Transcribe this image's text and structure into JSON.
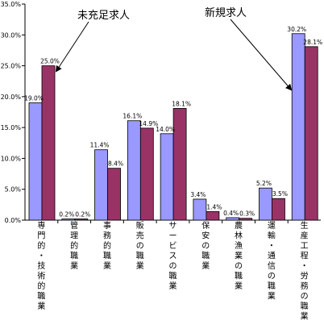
{
  "chart_data": {
    "type": "bar",
    "categories": [
      "専門的・技術的職業",
      "管理的職業",
      "事務的職業",
      "販売の職業",
      "サービスの職業",
      "保安の職業",
      "農林漁業の職業",
      "運輸・通信の職業",
      "生産工程・労務の職業"
    ],
    "series": [
      {
        "name": "新規求人",
        "color": "#9999ff",
        "values": [
          19.0,
          0.2,
          11.4,
          16.1,
          14.0,
          3.4,
          0.4,
          5.2,
          30.2
        ],
        "labels": [
          "19.0%",
          "0.2%",
          "11.4%",
          "16.1%",
          "14.0%",
          "3.4%",
          "0.4%",
          "5.2%",
          "30.2%"
        ]
      },
      {
        "name": "未充足求人",
        "color": "#993366",
        "values": [
          25.0,
          0.2,
          8.4,
          14.9,
          18.1,
          1.4,
          0.3,
          3.5,
          28.1
        ],
        "labels": [
          "25.0%",
          "0.2%",
          "8.4%",
          "14.9%",
          "18.1%",
          "1.4%",
          "0.3%",
          "3.5%",
          "28.1%"
        ]
      }
    ],
    "ylim": [
      0,
      35
    ],
    "yticks": [
      "0.0%",
      "5.0%",
      "10.0%",
      "15.0%",
      "20.0%",
      "25.0%",
      "30.0%",
      "35.0%"
    ],
    "annotations": {
      "left": "未充足求人",
      "right": "新規求人"
    },
    "grid": false,
    "legend": "callouts"
  }
}
